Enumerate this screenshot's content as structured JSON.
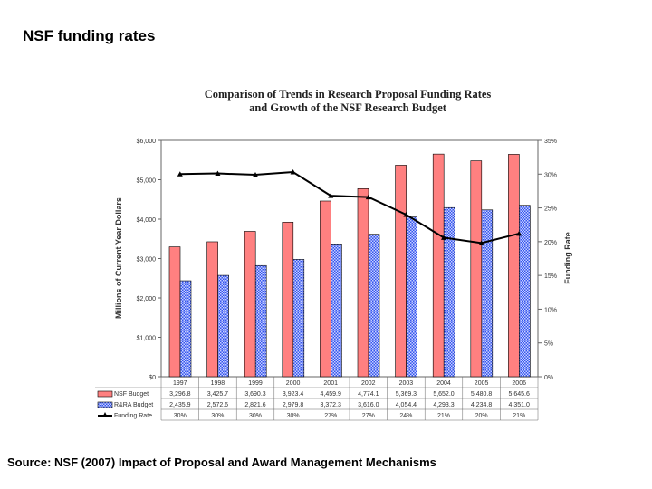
{
  "slide": {
    "title": "NSF funding rates",
    "source": "Source: NSF (2007) Impact of Proposal and Award Management Mechanisms"
  },
  "chart_data": {
    "type": "bar",
    "title": "Comparison of Trends in Research Proposal Funding Rates",
    "subtitle": "and Growth of the NSF Research Budget",
    "ylabel": "Millions of Current Year Dollars",
    "y2label": "Funding Rate",
    "ylim": [
      0,
      6000
    ],
    "y2lim": [
      0,
      35
    ],
    "yticks": [
      "$0",
      "$1,000",
      "$2,000",
      "$3,000",
      "$4,000",
      "$5,000",
      "$6,000"
    ],
    "y2ticks": [
      "0%",
      "5%",
      "10%",
      "15%",
      "20%",
      "25%",
      "30%",
      "35%"
    ],
    "categories": [
      "1997",
      "1998",
      "1999",
      "2000",
      "2001",
      "2002",
      "2003",
      "2004",
      "2005",
      "2006"
    ],
    "series": [
      {
        "name": "NSF Budget",
        "kind": "bar",
        "color": "#ff8080",
        "values": [
          3296.8,
          3425.7,
          3690.3,
          3923.4,
          4459.9,
          4774.1,
          5369.3,
          5652.0,
          5480.8,
          5645.6
        ],
        "labels": [
          "3,296.8",
          "3,425.7",
          "3,690.3",
          "3,923.4",
          "4,459.9",
          "4,774.1",
          "5,369.3",
          "5,652.0",
          "5,480.8",
          "5,645.6"
        ]
      },
      {
        "name": "R&RA Budget",
        "kind": "bar",
        "color": "#3355ee",
        "pattern": "checker",
        "values": [
          2435.9,
          2572.6,
          2821.6,
          2979.8,
          3372.3,
          3616.0,
          4054.4,
          4293.3,
          4234.8,
          4351.0
        ],
        "labels": [
          "2,435.9",
          "2,572.6",
          "2,821.6",
          "2,979.8",
          "3,372.3",
          "3,616.0",
          "4,054.4",
          "4,293.3",
          "4,234.8",
          "4,351.0"
        ]
      },
      {
        "name": "Funding Rate",
        "kind": "line",
        "axis": "right",
        "color": "#000000",
        "values": [
          30.0,
          30.1,
          29.9,
          30.3,
          26.8,
          26.6,
          24.0,
          20.6,
          19.8,
          21.2
        ],
        "labels": [
          "30%",
          "30%",
          "30%",
          "30%",
          "27%",
          "27%",
          "24%",
          "21%",
          "20%",
          "21%"
        ]
      }
    ],
    "grid": false,
    "legend": "table-below"
  }
}
